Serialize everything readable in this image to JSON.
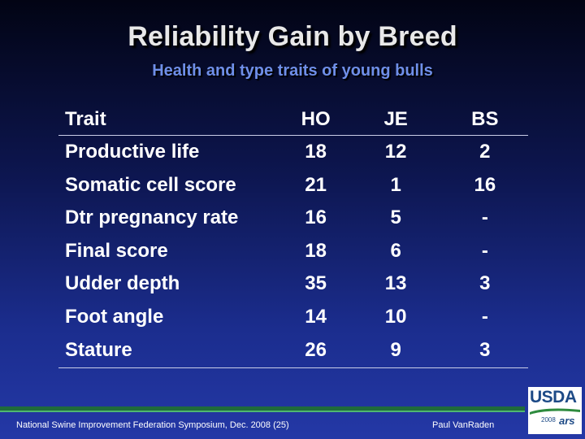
{
  "slide": {
    "title": "Reliability Gain by Breed",
    "subtitle": "Health and type traits of young bulls"
  },
  "table": {
    "headers": [
      "Trait",
      "HO",
      "JE",
      "BS"
    ],
    "rows": [
      [
        "Productive life",
        "18",
        "12",
        "2"
      ],
      [
        "Somatic cell score",
        "21",
        "1",
        "16"
      ],
      [
        "Dtr pregnancy rate",
        "16",
        "5",
        "-"
      ],
      [
        "Final score",
        "18",
        "6",
        "-"
      ],
      [
        "Udder depth",
        "35",
        "13",
        "3"
      ],
      [
        "Foot angle",
        "14",
        "10",
        "-"
      ],
      [
        "Stature",
        "26",
        "9",
        "3"
      ]
    ]
  },
  "footer": {
    "left": "National Swine Improvement Federation Symposium, Dec. 2008 (25)",
    "right": "Paul VanRaden"
  },
  "logo": {
    "name": "usda-ars-logo",
    "text": "USDA",
    "year": "2008",
    "ars": "ars",
    "colors": {
      "blue": "#1d4a86",
      "green": "#2e8b3e"
    }
  }
}
